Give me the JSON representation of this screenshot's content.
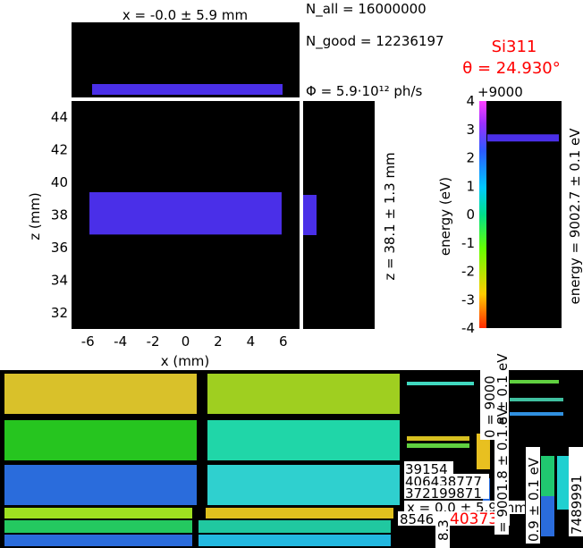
{
  "chart_data": {
    "type": "heatmap",
    "main": {
      "title_top": "x = -0.0 ± 5.9 mm",
      "n_all": "N_all = 16000000",
      "n_good": "N_good = 12236197",
      "flux": "Φ = 5.9·10¹² ph/s",
      "crystal": "Si311",
      "theta": "θ = 24.930°",
      "offset_label": "+9000",
      "xlabel": "x (mm)",
      "ylabel": "z (mm)",
      "z_label": "z = 38.1 ± 1.3 mm",
      "energy_axis_label": "energy (eV)",
      "energy_label": "energy = 9002.7 ± 0.1 eV",
      "xlim": [
        -7,
        7
      ],
      "ylim": [
        31,
        45
      ],
      "x_ticks": [
        -6,
        -4,
        -2,
        0,
        2,
        4,
        6
      ],
      "y_ticks": [
        32,
        34,
        36,
        38,
        40,
        42,
        44
      ],
      "energy_ticks": [
        4,
        3,
        2,
        1,
        0,
        -1,
        -2,
        -3,
        -4
      ],
      "energy_range": [
        -4,
        4
      ],
      "beam": {
        "x_center": 0.0,
        "x_sigma": 5.9,
        "z_center": 38.1,
        "z_sigma": 1.3,
        "energy_offset": 2.7
      }
    },
    "panel2": {
      "texts": [
        "39154",
        "406438777",
        "372199871",
        "8546",
        "403735"
      ],
      "x_label": "x = 0.0 ± 5.9 mm",
      "label_a": "0 = 9000",
      "label_b": "= 9001.8 ± 0.1 eV",
      "label_c": "0.9 ± 0.1 eV",
      "label_d": "7489991",
      "label_e": "8.3",
      "label_f": ".8 ± 0.1 eV"
    },
    "colors": {
      "beam_main": "#4a2fe8",
      "title_red": "#ff0000",
      "energy_cmap": [
        "#ff2a00",
        "#ffcc00",
        "#66ff00",
        "#00e08a",
        "#00c8ff",
        "#2b5bff",
        "#9a30ff",
        "#ff40ff"
      ],
      "tile_colors": [
        "#d9c12a",
        "#9fcf20",
        "#26c51f",
        "#20d6a8",
        "#2a6cdc",
        "#2fd0cf"
      ]
    }
  }
}
